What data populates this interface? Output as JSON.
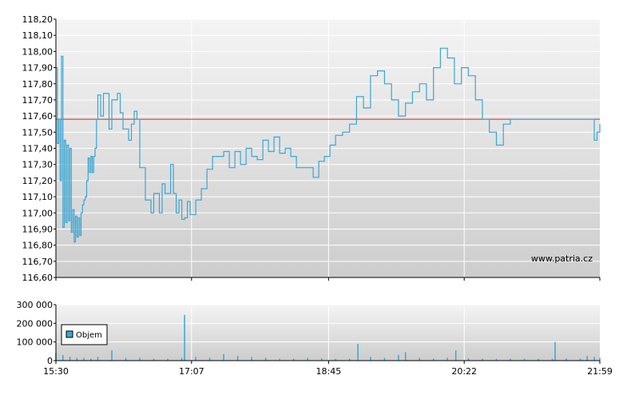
{
  "chart_data": [
    {
      "type": "line",
      "title": "",
      "xlabel": "",
      "ylabel": "",
      "ylim": [
        116.6,
        118.2
      ],
      "y_ticks": [
        "118,20",
        "118,10",
        "118,00",
        "117,90",
        "117,80",
        "117,70",
        "117,60",
        "117,50",
        "117,40",
        "117,30",
        "117,20",
        "117,10",
        "117,00",
        "116,90",
        "116,80",
        "116,70",
        "116,60"
      ],
      "x_ticks": [
        "15:30",
        "17:07",
        "18:45",
        "20:22",
        "21:59"
      ],
      "reference_line": 117.58,
      "colors": {
        "line": "#3aa6d2",
        "reference": "#d92020",
        "plot_top": "#f2f2f2",
        "plot_bottom": "#cfcfcf",
        "grid": "#ffffff"
      },
      "grid": true,
      "watermark": "www.patria.cz",
      "series": [
        {
          "x": [
            "15:30",
            "15:31",
            "15:32",
            "15:33",
            "15:34",
            "15:35",
            "15:36",
            "15:37",
            "15:38",
            "15:39",
            "15:40",
            "15:41",
            "15:42",
            "15:43",
            "15:44",
            "15:45",
            "15:46",
            "15:47",
            "15:48",
            "15:49",
            "15:50",
            "15:51",
            "15:52",
            "15:53",
            "15:54",
            "15:55",
            "15:56",
            "15:57",
            "15:58",
            "15:59",
            "16:00",
            "16:02",
            "16:04",
            "16:06",
            "16:08",
            "16:10",
            "16:12",
            "16:14",
            "16:16",
            "16:18",
            "16:20",
            "16:22",
            "16:24",
            "16:26",
            "16:28",
            "16:30",
            "16:32",
            "16:34",
            "16:36",
            "16:38",
            "16:40",
            "16:42",
            "16:44",
            "16:46",
            "16:48",
            "16:50",
            "16:52",
            "16:54",
            "16:56",
            "16:58",
            "17:00",
            "17:02",
            "17:04",
            "17:06",
            "17:08",
            "17:10",
            "17:14",
            "17:18",
            "17:22",
            "17:26",
            "17:30",
            "17:34",
            "17:38",
            "17:42",
            "17:46",
            "17:50",
            "17:54",
            "17:58",
            "18:02",
            "18:06",
            "18:10",
            "18:14",
            "18:18",
            "18:22",
            "18:26",
            "18:30",
            "18:34",
            "18:38",
            "18:42",
            "18:46",
            "18:50",
            "18:55",
            "19:00",
            "19:05",
            "19:10",
            "19:15",
            "19:20",
            "19:25",
            "19:30",
            "19:35",
            "19:40",
            "19:45",
            "19:50",
            "19:55",
            "20:00",
            "20:05",
            "20:10",
            "20:15",
            "20:20",
            "20:25",
            "20:30",
            "20:35",
            "20:40",
            "20:45",
            "20:50",
            "20:55",
            "21:00",
            "21:05",
            "21:10",
            "21:15",
            "21:20",
            "21:25",
            "21:30",
            "21:35",
            "21:40",
            "21:45",
            "21:50",
            "21:53",
            "21:55",
            "21:57",
            "21:59"
          ],
          "values": [
            117.9,
            117.43,
            117.58,
            117.2,
            117.97,
            116.91,
            117.45,
            116.94,
            117.42,
            116.95,
            117.4,
            116.88,
            117.02,
            116.82,
            116.98,
            116.85,
            116.97,
            116.86,
            117.0,
            117.05,
            117.08,
            117.1,
            117.2,
            117.34,
            117.25,
            117.35,
            117.25,
            117.35,
            117.4,
            117.58,
            117.73,
            117.6,
            117.74,
            117.74,
            117.52,
            117.7,
            117.7,
            117.74,
            117.62,
            117.52,
            117.52,
            117.45,
            117.55,
            117.63,
            117.58,
            117.28,
            117.28,
            117.08,
            117.08,
            117.0,
            117.12,
            117.12,
            117.0,
            117.18,
            117.12,
            117.12,
            117.3,
            117.12,
            117.0,
            117.08,
            116.96,
            116.97,
            117.07,
            116.99,
            116.99,
            117.08,
            117.15,
            117.27,
            117.35,
            117.35,
            117.38,
            117.28,
            117.38,
            117.3,
            117.4,
            117.35,
            117.33,
            117.45,
            117.38,
            117.47,
            117.37,
            117.4,
            117.35,
            117.28,
            117.28,
            117.28,
            117.22,
            117.32,
            117.35,
            117.42,
            117.48,
            117.5,
            117.55,
            117.72,
            117.65,
            117.85,
            117.88,
            117.8,
            117.7,
            117.6,
            117.68,
            117.75,
            117.8,
            117.7,
            117.9,
            118.02,
            117.96,
            117.8,
            117.9,
            117.85,
            117.7,
            117.58,
            117.5,
            117.42,
            117.55,
            117.58,
            117.58,
            117.58,
            117.58,
            117.58,
            117.58,
            117.58,
            117.58,
            117.58,
            117.58,
            117.58,
            117.58,
            117.58,
            117.45,
            117.5,
            117.55
          ]
        }
      ]
    },
    {
      "type": "bar",
      "title": "",
      "xlabel": "",
      "ylabel": "",
      "ylim": [
        0,
        300000
      ],
      "y_ticks": [
        "300 000",
        "200 000",
        "100 000",
        "0"
      ],
      "x_ticks": [
        "15:30",
        "17:07",
        "18:45",
        "20:22",
        "21:59"
      ],
      "colors": {
        "bar": "#3aa6d2",
        "legend_swatch": "#3aa6d2",
        "plot_top": "#f2f2f2",
        "plot_bottom": "#cfcfcf",
        "grid": "#ffffff"
      },
      "grid": true,
      "legend": {
        "placement": "middle-left",
        "entries": [
          "Objem"
        ]
      },
      "series": [
        {
          "name": "Objem",
          "x": [
            "15:30",
            "15:35",
            "15:40",
            "15:45",
            "15:50",
            "15:55",
            "16:00",
            "16:10",
            "16:20",
            "16:30",
            "16:40",
            "16:50",
            "17:00",
            "17:02",
            "17:10",
            "17:20",
            "17:30",
            "17:40",
            "17:50",
            "18:00",
            "18:10",
            "18:20",
            "18:30",
            "18:40",
            "18:50",
            "19:00",
            "19:06",
            "19:15",
            "19:25",
            "19:35",
            "19:40",
            "19:50",
            "20:00",
            "20:10",
            "20:16",
            "20:25",
            "20:35",
            "20:45",
            "20:55",
            "21:05",
            "21:15",
            "21:25",
            "21:27",
            "21:35",
            "21:45",
            "21:50",
            "21:55",
            "21:59"
          ],
          "values": [
            40000,
            30000,
            20000,
            15000,
            15000,
            10000,
            20000,
            55000,
            15000,
            15000,
            10000,
            10000,
            15000,
            245000,
            20000,
            15000,
            35000,
            25000,
            20000,
            15000,
            10000,
            10000,
            15000,
            12000,
            10000,
            10000,
            90000,
            20000,
            15000,
            30000,
            45000,
            15000,
            10000,
            15000,
            55000,
            12000,
            10000,
            10000,
            10000,
            10000,
            10000,
            10000,
            100000,
            12000,
            10000,
            25000,
            20000,
            15000
          ]
        }
      ]
    }
  ]
}
